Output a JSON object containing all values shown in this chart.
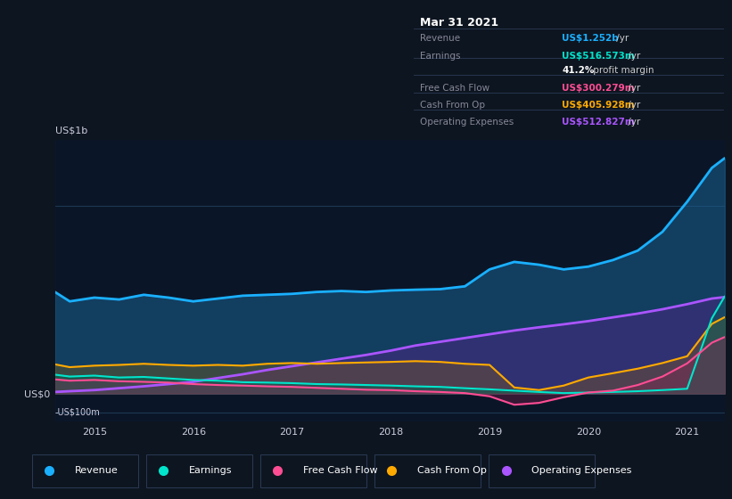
{
  "bg_color": "#0d1520",
  "plot_bg_color": "#0a1628",
  "title_box": {
    "date": "Mar 31 2021",
    "rows": [
      {
        "label": "Revenue",
        "value": "US$1.252b",
        "suffix": " /yr",
        "value_color": "#1ab0ff",
        "label_color": "#888899"
      },
      {
        "label": "Earnings",
        "value": "US$516.573m",
        "suffix": " /yr",
        "value_color": "#00e5cc",
        "label_color": "#888899"
      },
      {
        "label": "",
        "value": "41.2%",
        "suffix": " profit margin",
        "value_color": "#ffffff",
        "label_color": "#888899"
      },
      {
        "label": "Free Cash Flow",
        "value": "US$300.279m",
        "suffix": " /yr",
        "value_color": "#ff4d94",
        "label_color": "#888899"
      },
      {
        "label": "Cash From Op",
        "value": "US$405.928m",
        "suffix": " /yr",
        "value_color": "#ffaa00",
        "label_color": "#888899"
      },
      {
        "label": "Operating Expenses",
        "value": "US$512.827m",
        "suffix": " /yr",
        "value_color": "#aa55ff",
        "label_color": "#888899"
      }
    ]
  },
  "ylim": [
    -150000000,
    1350000000
  ],
  "ytick_vals": [
    -100000000,
    0,
    1000000000
  ],
  "ytick_labels": [
    "-US$100m",
    "US$0",
    "US$1b"
  ],
  "xlim_start": 2014.6,
  "xlim_end": 2021.38,
  "xtick_years": [
    2015,
    2016,
    2017,
    2018,
    2019,
    2020,
    2021
  ],
  "series": {
    "revenue": {
      "color": "#1ab0ff",
      "fill_color": "#1a6090",
      "fill_alpha": 0.55,
      "linewidth": 2.0,
      "label": "Revenue",
      "x": [
        2014.6,
        2014.75,
        2015.0,
        2015.25,
        2015.5,
        2015.75,
        2016.0,
        2016.25,
        2016.5,
        2016.75,
        2017.0,
        2017.25,
        2017.5,
        2017.75,
        2018.0,
        2018.25,
        2018.5,
        2018.75,
        2019.0,
        2019.25,
        2019.5,
        2019.75,
        2020.0,
        2020.25,
        2020.5,
        2020.75,
        2021.0,
        2021.25,
        2021.38
      ],
      "y": [
        540000000,
        490000000,
        510000000,
        500000000,
        525000000,
        510000000,
        490000000,
        505000000,
        520000000,
        525000000,
        530000000,
        540000000,
        545000000,
        540000000,
        548000000,
        552000000,
        555000000,
        570000000,
        660000000,
        700000000,
        685000000,
        660000000,
        675000000,
        710000000,
        760000000,
        860000000,
        1020000000,
        1200000000,
        1252000000
      ]
    },
    "earnings": {
      "color": "#00e5cc",
      "fill_color": "#006655",
      "fill_alpha": 0.45,
      "linewidth": 1.5,
      "label": "Earnings",
      "x": [
        2014.6,
        2014.75,
        2015.0,
        2015.25,
        2015.5,
        2015.75,
        2016.0,
        2016.25,
        2016.5,
        2016.75,
        2017.0,
        2017.25,
        2017.5,
        2017.75,
        2018.0,
        2018.25,
        2018.5,
        2018.75,
        2019.0,
        2019.25,
        2019.5,
        2019.75,
        2020.0,
        2020.25,
        2020.5,
        2020.75,
        2021.0,
        2021.25,
        2021.38
      ],
      "y": [
        100000000,
        90000000,
        95000000,
        85000000,
        88000000,
        80000000,
        72000000,
        68000000,
        60000000,
        58000000,
        55000000,
        50000000,
        48000000,
        45000000,
        42000000,
        38000000,
        35000000,
        28000000,
        22000000,
        15000000,
        8000000,
        2000000,
        5000000,
        8000000,
        12000000,
        18000000,
        25000000,
        400000000,
        516573000
      ]
    },
    "free_cash_flow": {
      "color": "#ff4d94",
      "fill_color": "#992255",
      "fill_alpha": 0.3,
      "linewidth": 1.5,
      "label": "Free Cash Flow",
      "x": [
        2014.6,
        2014.75,
        2015.0,
        2015.25,
        2015.5,
        2015.75,
        2016.0,
        2016.25,
        2016.5,
        2016.75,
        2017.0,
        2017.25,
        2017.5,
        2017.75,
        2018.0,
        2018.25,
        2018.5,
        2018.75,
        2019.0,
        2019.25,
        2019.5,
        2019.75,
        2020.0,
        2020.25,
        2020.5,
        2020.75,
        2021.0,
        2021.25,
        2021.38
      ],
      "y": [
        75000000,
        68000000,
        72000000,
        65000000,
        62000000,
        58000000,
        50000000,
        45000000,
        42000000,
        38000000,
        35000000,
        30000000,
        25000000,
        20000000,
        18000000,
        12000000,
        8000000,
        2000000,
        -15000000,
        -60000000,
        -50000000,
        -20000000,
        5000000,
        15000000,
        45000000,
        90000000,
        160000000,
        270000000,
        300279000
      ]
    },
    "cash_from_op": {
      "color": "#ffaa00",
      "fill_color": "#996600",
      "fill_alpha": 0.3,
      "linewidth": 1.5,
      "label": "Cash From Op",
      "x": [
        2014.6,
        2014.75,
        2015.0,
        2015.25,
        2015.5,
        2015.75,
        2016.0,
        2016.25,
        2016.5,
        2016.75,
        2017.0,
        2017.25,
        2017.5,
        2017.75,
        2018.0,
        2018.25,
        2018.5,
        2018.75,
        2019.0,
        2019.25,
        2019.5,
        2019.75,
        2020.0,
        2020.25,
        2020.5,
        2020.75,
        2021.0,
        2021.25,
        2021.38
      ],
      "y": [
        155000000,
        140000000,
        148000000,
        152000000,
        158000000,
        152000000,
        148000000,
        152000000,
        148000000,
        158000000,
        162000000,
        158000000,
        162000000,
        165000000,
        168000000,
        172000000,
        168000000,
        158000000,
        152000000,
        32000000,
        18000000,
        42000000,
        85000000,
        108000000,
        132000000,
        162000000,
        198000000,
        370000000,
        405928000
      ]
    },
    "operating_expenses": {
      "color": "#aa55ff",
      "fill_color": "#552288",
      "fill_alpha": 0.45,
      "linewidth": 2.0,
      "label": "Operating Expenses",
      "x": [
        2014.6,
        2014.75,
        2015.0,
        2015.25,
        2015.5,
        2015.75,
        2016.0,
        2016.25,
        2016.5,
        2016.75,
        2017.0,
        2017.25,
        2017.5,
        2017.75,
        2018.0,
        2018.25,
        2018.5,
        2018.75,
        2019.0,
        2019.25,
        2019.5,
        2019.75,
        2020.0,
        2020.25,
        2020.5,
        2020.75,
        2021.0,
        2021.25,
        2021.38
      ],
      "y": [
        8000000,
        12000000,
        18000000,
        28000000,
        38000000,
        50000000,
        62000000,
        82000000,
        102000000,
        125000000,
        145000000,
        165000000,
        185000000,
        205000000,
        228000000,
        255000000,
        275000000,
        295000000,
        315000000,
        335000000,
        352000000,
        368000000,
        385000000,
        405000000,
        425000000,
        448000000,
        475000000,
        505000000,
        512827000
      ]
    }
  },
  "legend": [
    {
      "label": "Revenue",
      "color": "#1ab0ff"
    },
    {
      "label": "Earnings",
      "color": "#00e5cc"
    },
    {
      "label": "Free Cash Flow",
      "color": "#ff4d94"
    },
    {
      "label": "Cash From Op",
      "color": "#ffaa00"
    },
    {
      "label": "Operating Expenses",
      "color": "#aa55ff"
    }
  ]
}
